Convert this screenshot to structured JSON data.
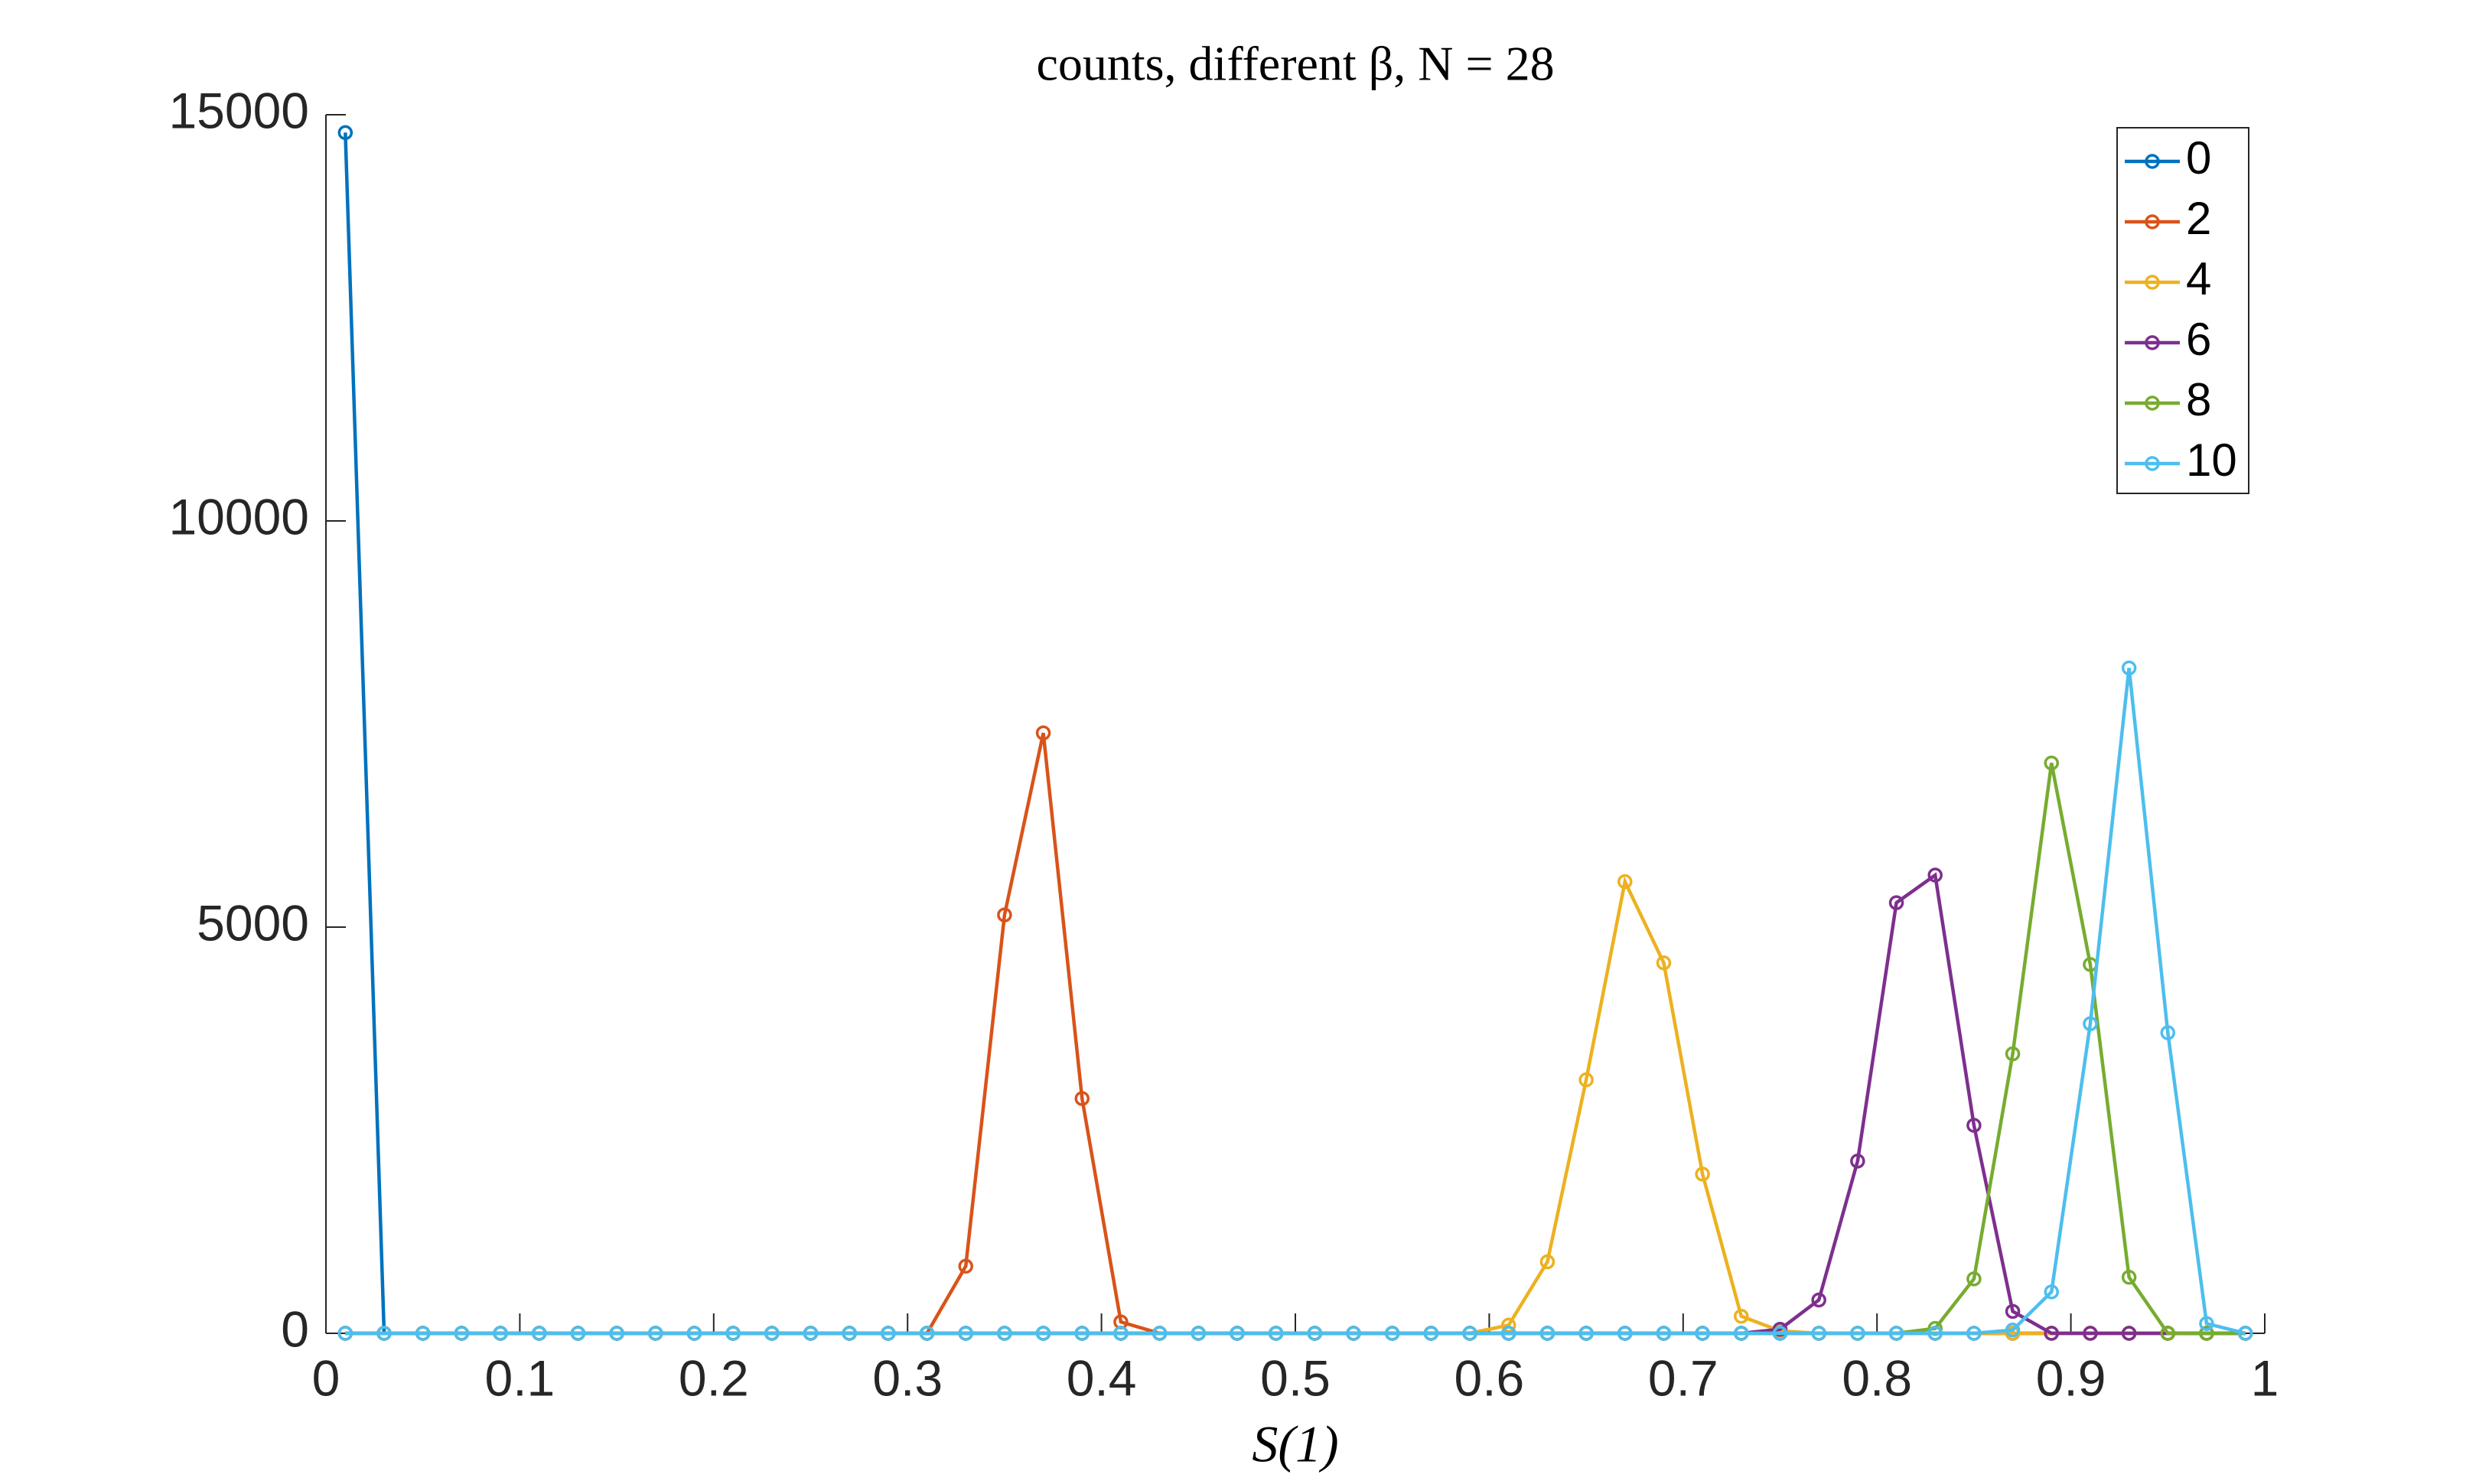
{
  "chart_data": {
    "type": "line",
    "title": "counts, different β, N = 28",
    "x_label": "S(1)",
    "x": [
      0.01,
      0.03,
      0.05,
      0.07,
      0.09,
      0.11,
      0.13,
      0.15,
      0.17,
      0.19,
      0.21,
      0.23,
      0.25,
      0.27,
      0.29,
      0.31,
      0.33,
      0.35,
      0.37,
      0.39,
      0.41,
      0.43,
      0.45,
      0.47,
      0.49,
      0.51,
      0.53,
      0.55,
      0.57,
      0.59,
      0.61,
      0.63,
      0.65,
      0.67,
      0.69,
      0.71,
      0.73,
      0.75,
      0.77,
      0.79,
      0.81,
      0.83,
      0.85,
      0.87,
      0.89,
      0.91,
      0.93,
      0.95,
      0.97,
      0.99
    ],
    "series": [
      {
        "name": "0",
        "color": "#0072BD",
        "values": [
          14780,
          0,
          0,
          0,
          0,
          0,
          0,
          0,
          0,
          0,
          0,
          0,
          0,
          0,
          0,
          0,
          0,
          0,
          0,
          0,
          0,
          0,
          0,
          0,
          0,
          0,
          0,
          0,
          0,
          0,
          0,
          0,
          0,
          0,
          0,
          0,
          0,
          0,
          0,
          0,
          0,
          0,
          0,
          0,
          0,
          0,
          0,
          0,
          0,
          0
        ]
      },
      {
        "name": "2",
        "color": "#D95319",
        "values": [
          0,
          0,
          0,
          0,
          0,
          0,
          0,
          0,
          0,
          0,
          0,
          0,
          0,
          0,
          0,
          0,
          826,
          5150,
          7390,
          2890,
          140,
          0,
          0,
          0,
          0,
          0,
          0,
          0,
          0,
          0,
          0,
          0,
          0,
          0,
          0,
          0,
          0,
          0,
          0,
          0,
          0,
          0,
          0,
          0,
          0,
          0,
          0,
          0,
          0,
          0
        ]
      },
      {
        "name": "4",
        "color": "#EDB120",
        "values": [
          0,
          0,
          0,
          0,
          0,
          0,
          0,
          0,
          0,
          0,
          0,
          0,
          0,
          0,
          0,
          0,
          0,
          0,
          0,
          0,
          0,
          0,
          0,
          0,
          0,
          0,
          0,
          0,
          0,
          0,
          100,
          880,
          3120,
          5560,
          4560,
          1960,
          210,
          30,
          0,
          0,
          0,
          0,
          0,
          0,
          0,
          0,
          0,
          0,
          0,
          0
        ]
      },
      {
        "name": "6",
        "color": "#7E2F8E",
        "values": [
          0,
          0,
          0,
          0,
          0,
          0,
          0,
          0,
          0,
          0,
          0,
          0,
          0,
          0,
          0,
          0,
          0,
          0,
          0,
          0,
          0,
          0,
          0,
          0,
          0,
          0,
          0,
          0,
          0,
          0,
          0,
          0,
          0,
          0,
          0,
          0,
          0,
          50,
          410,
          2120,
          5300,
          5640,
          2560,
          270,
          0,
          0,
          0,
          0,
          0,
          0
        ]
      },
      {
        "name": "8",
        "color": "#77AC30",
        "values": [
          0,
          0,
          0,
          0,
          0,
          0,
          0,
          0,
          0,
          0,
          0,
          0,
          0,
          0,
          0,
          0,
          0,
          0,
          0,
          0,
          0,
          0,
          0,
          0,
          0,
          0,
          0,
          0,
          0,
          0,
          0,
          0,
          0,
          0,
          0,
          0,
          0,
          0,
          0,
          0,
          0,
          60,
          670,
          3440,
          7020,
          4540,
          690,
          0,
          0,
          0
        ]
      },
      {
        "name": "10",
        "color": "#4DBEEE",
        "values": [
          0,
          0,
          0,
          0,
          0,
          0,
          0,
          0,
          0,
          0,
          0,
          0,
          0,
          0,
          0,
          0,
          0,
          0,
          0,
          0,
          0,
          0,
          0,
          0,
          0,
          0,
          0,
          0,
          0,
          0,
          0,
          0,
          0,
          0,
          0,
          0,
          0,
          0,
          0,
          0,
          0,
          0,
          0,
          40,
          510,
          3810,
          8190,
          3700,
          120,
          0
        ]
      }
    ],
    "xlim": [
      0,
      1
    ],
    "xticks": [
      0,
      0.1,
      0.2,
      0.3,
      0.4,
      0.5,
      0.6,
      0.7,
      0.8,
      0.9,
      1
    ],
    "ylim": [
      0,
      15000
    ],
    "yticks": [
      0,
      5000,
      10000,
      15000
    ],
    "legend": "upper right"
  }
}
